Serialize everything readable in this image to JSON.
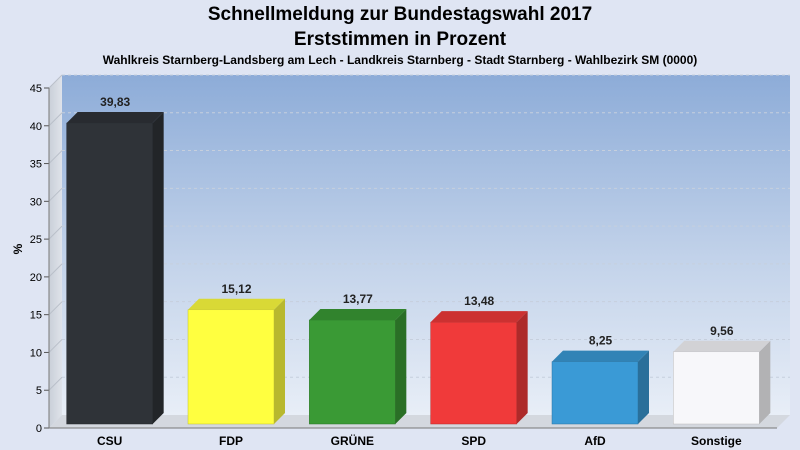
{
  "header": {
    "title_line1": "Schnellmeldung zur Bundestagswahl 2017",
    "title_line2": "Erststimmen in Prozent",
    "subtitle": "Wahlkreis Starnberg-Landsberg am Lech - Landkreis Starnberg - Stadt Starnberg - Wahlbezirk SM (0000)"
  },
  "chart_data": {
    "type": "bar",
    "title": "Schnellmeldung zur Bundestagswahl 2017 – Erststimmen in Prozent",
    "ylabel": "%",
    "xlabel": "",
    "ylim": [
      0,
      45
    ],
    "yticks": [
      0,
      5,
      10,
      15,
      20,
      25,
      30,
      35,
      40,
      45
    ],
    "grid": true,
    "categories": [
      "CSU",
      "FDP",
      "GRÜNE",
      "SPD",
      "AfD",
      "Sonstige"
    ],
    "values": [
      39.83,
      15.12,
      13.77,
      13.48,
      8.25,
      9.56
    ],
    "value_labels": [
      "39,83",
      "15,12",
      "13,77",
      "13,48",
      "8,25",
      "9,56"
    ],
    "colors": [
      "#2f3338",
      "#ffff40",
      "#3a9a35",
      "#f03a3a",
      "#3a9ad6",
      "#f7f7fa"
    ]
  }
}
